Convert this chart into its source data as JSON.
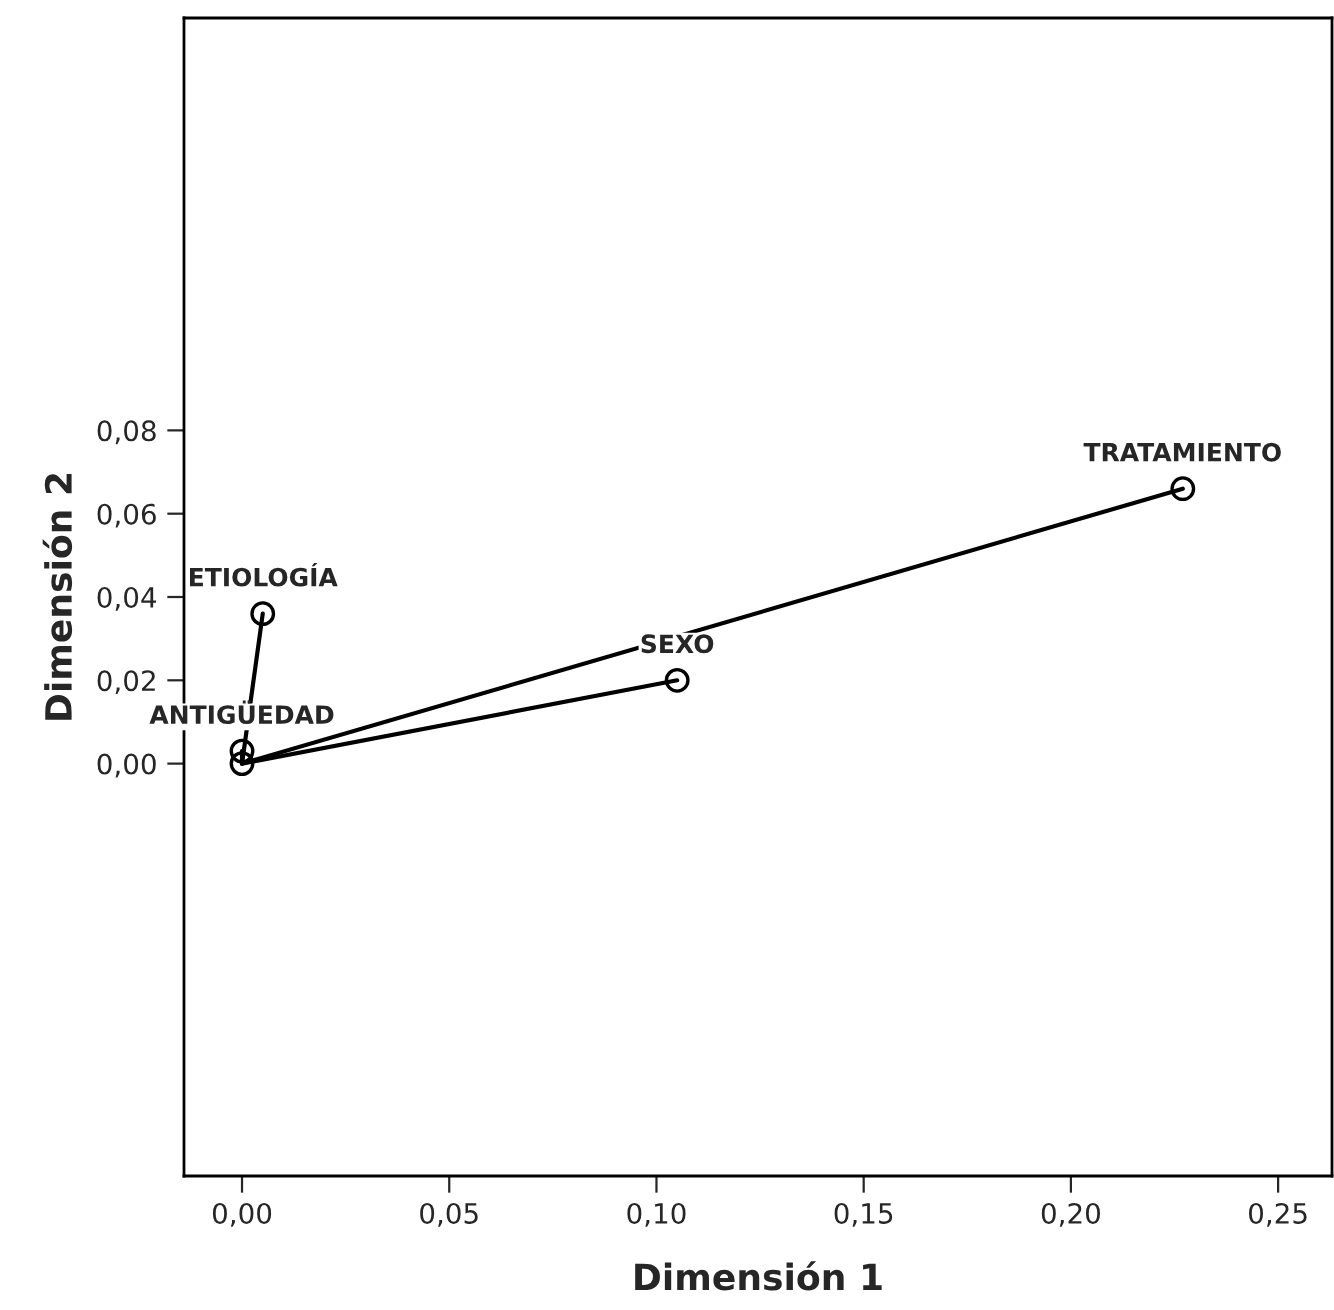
{
  "chart_data": {
    "type": "scatter",
    "xlabel": "Dimensión 1",
    "ylabel": "Dimensión 2",
    "xlim": [
      -0.014,
      0.263
    ],
    "ylim": [
      -0.099,
      0.179
    ],
    "xticks": [
      {
        "value": 0,
        "label": "0,00"
      },
      {
        "value": 0.05,
        "label": "0,05"
      },
      {
        "value": 0.1,
        "label": "0,10"
      },
      {
        "value": 0.15,
        "label": "0,15"
      },
      {
        "value": 0.2,
        "label": "0,20"
      },
      {
        "value": 0.25,
        "label": "0,25"
      }
    ],
    "yticks": [
      {
        "value": 0,
        "label": "0,00"
      },
      {
        "value": 0.02,
        "label": "0,02"
      },
      {
        "value": 0.04,
        "label": "0,04"
      },
      {
        "value": 0.06,
        "label": "0,06"
      },
      {
        "value": 0.08,
        "label": "0,08"
      }
    ],
    "grid": false,
    "legend": false,
    "series": [
      {
        "type": "line",
        "color": "#000000",
        "x": [
          0,
          0.227
        ],
        "values": [
          0,
          0.066
        ]
      },
      {
        "type": "line",
        "color": "#000000",
        "x": [
          0,
          0.105
        ],
        "values": [
          0,
          0.02
        ]
      },
      {
        "type": "line",
        "color": "#000000",
        "x": [
          0,
          0.005
        ],
        "values": [
          0,
          0.036
        ]
      },
      {
        "type": "line",
        "color": "#000000",
        "x": [
          0,
          0.0
        ],
        "values": [
          0,
          0.003
        ]
      },
      {
        "color": "#000000",
        "marker": "circle",
        "x": [
          0.227,
          0.105,
          0.005,
          0.0,
          0.0
        ],
        "values": [
          0.066,
          0.02,
          0.036,
          0.003,
          0.0
        ]
      }
    ],
    "annotations": [
      {
        "text": "TRATAMIENTO",
        "x": 0.227,
        "y": 0.066
      },
      {
        "text": "SEXO",
        "x": 0.105,
        "y": 0.02
      },
      {
        "text": "ETIOLOGÍA",
        "x": 0.005,
        "y": 0.036
      },
      {
        "text": "ANTIGÜEDAD",
        "x": 0.0,
        "y": 0.003
      }
    ]
  }
}
